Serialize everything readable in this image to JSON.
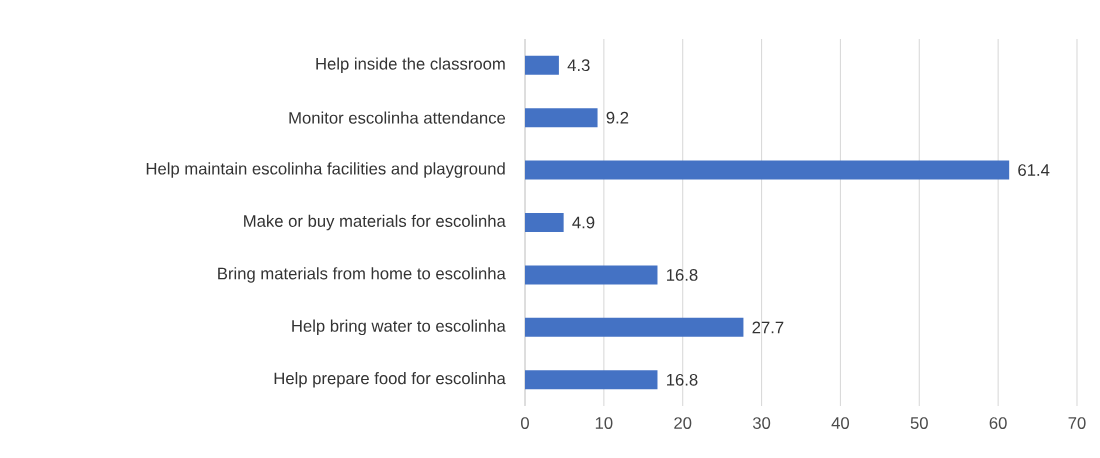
{
  "chart_data": {
    "type": "bar",
    "orientation": "horizontal",
    "categories": [
      "Help inside the classroom",
      "Monitor escolinha attendance",
      "Help maintain escolinha facilities and playground",
      "Make or buy materials for escolinha",
      "Bring materials from home to escolinha",
      "Help bring water to escolinha",
      "Help prepare food for escolinha"
    ],
    "values": [
      4.3,
      9.2,
      61.4,
      4.9,
      16.8,
      27.7,
      16.8
    ],
    "color": "#4472c4",
    "xlim": [
      0,
      70
    ],
    "xticks": [
      0,
      10,
      20,
      30,
      40,
      50,
      60,
      70
    ],
    "grid": "x",
    "data_labels": true
  }
}
